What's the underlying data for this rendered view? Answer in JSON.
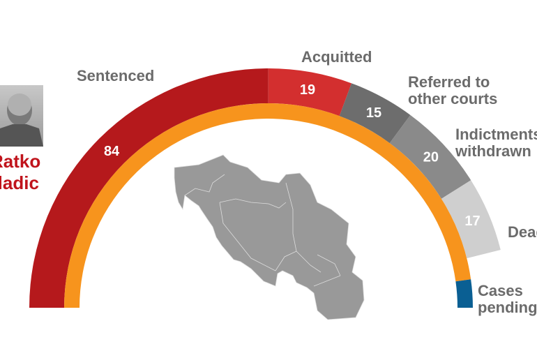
{
  "chart_data": {
    "type": "pie",
    "subtype": "semicircle-donut",
    "title": "",
    "segments": [
      {
        "label": "Sentenced",
        "value": 84,
        "color": "#b5191c"
      },
      {
        "label": "Acquitted",
        "value": 19,
        "color": "#d32f2f"
      },
      {
        "label": "Referred to other courts",
        "value": 15,
        "color": "#6d6d6d"
      },
      {
        "label": "Indictments withdrawn",
        "value": 20,
        "color": "#8a8a8a"
      },
      {
        "label": "Dead",
        "value": 17,
        "color": "#cfcfcf"
      }
    ],
    "inner_ring": [
      {
        "label": "",
        "color": "#f7941d"
      },
      {
        "label": "Cases pending",
        "color": "#0a5f93"
      }
    ]
  },
  "labels": {
    "sentenced": "Sentenced",
    "acquitted": "Acquitted",
    "referred_1": "Referred to",
    "referred_2": "other courts",
    "withdrawn_1": "Indictments",
    "withdrawn_2": "withdrawn",
    "dead": "Dead",
    "pending_1": "Cases",
    "pending_2": "pending"
  },
  "person": {
    "first": "Ratko",
    "last": "Mladic"
  }
}
